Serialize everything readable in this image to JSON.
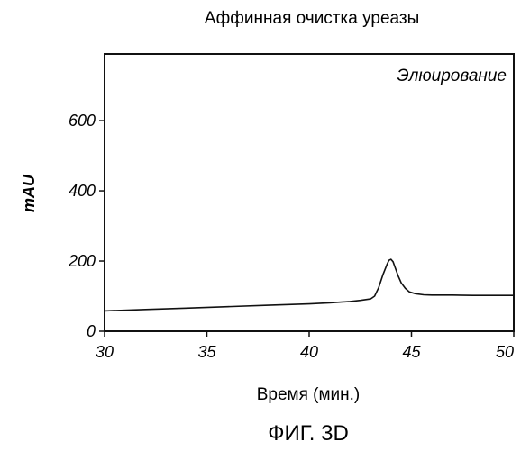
{
  "chart_data": {
    "type": "line",
    "title": "Аффинная очистка уреазы",
    "xlabel": "Время (мин.)",
    "ylabel": "mAU",
    "xlim": [
      30,
      50
    ],
    "ylim": [
      0,
      790
    ],
    "xticks": [
      30,
      35,
      40,
      45,
      50
    ],
    "yticks": [
      0,
      200,
      400,
      600
    ],
    "grid": false,
    "annotation": "Элюирование",
    "series": [
      {
        "x": [
          30,
          32,
          34,
          36,
          38,
          40,
          41,
          42,
          42.5,
          43,
          43.2,
          43.4,
          43.6,
          43.8,
          43.9,
          44.0,
          44.1,
          44.2,
          44.35,
          44.5,
          44.7,
          44.9,
          45.2,
          45.6,
          46,
          47,
          48,
          49,
          50
        ],
        "y": [
          58,
          62,
          66,
          70,
          74,
          78,
          81,
          85,
          88,
          92,
          100,
          125,
          160,
          190,
          202,
          205,
          198,
          182,
          158,
          138,
          122,
          112,
          107,
          104,
          103,
          103,
          102,
          102,
          102
        ],
        "color": "#111111"
      }
    ]
  },
  "caption": "ФИГ. 3D"
}
